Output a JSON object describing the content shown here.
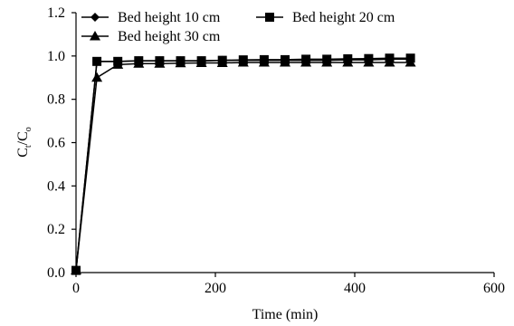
{
  "chart_data": {
    "type": "line",
    "title": "",
    "xlabel": "Time (min)",
    "ylabel_main": "C",
    "ylabel_main_sub": "t",
    "ylabel_sep": "/C",
    "ylabel_sep_sub": "o",
    "xlim": [
      0,
      600
    ],
    "ylim": [
      0.0,
      1.2
    ],
    "x_ticks": [
      0,
      200,
      400,
      600
    ],
    "x_tick_labels": [
      "0",
      "200",
      "400",
      "600"
    ],
    "y_ticks": [
      0.0,
      0.2,
      0.4,
      0.6,
      0.8,
      1.0,
      1.2
    ],
    "y_tick_labels": [
      "0.0",
      "0.2",
      "0.4",
      "0.6",
      "0.8",
      "1.0",
      "1.2"
    ],
    "grid": false,
    "legend_position": "top-left",
    "series": [
      {
        "name": "Bed height 10 cm",
        "marker": "diamond",
        "x": [
          0,
          30,
          60,
          90,
          120,
          150,
          180,
          210,
          240,
          270,
          300,
          330,
          360,
          390,
          420,
          450,
          480
        ],
        "y": [
          0.01,
          0.975,
          0.975,
          0.978,
          0.978,
          0.978,
          0.978,
          0.98,
          0.98,
          0.98,
          0.98,
          0.98,
          0.98,
          0.982,
          0.982,
          0.985,
          0.985
        ]
      },
      {
        "name": "Bed height 20 cm",
        "marker": "square",
        "x": [
          0,
          30,
          60,
          90,
          120,
          150,
          180,
          210,
          240,
          270,
          300,
          330,
          360,
          390,
          420,
          450,
          480
        ],
        "y": [
          0.01,
          0.975,
          0.975,
          0.978,
          0.978,
          0.978,
          0.978,
          0.98,
          0.982,
          0.983,
          0.983,
          0.985,
          0.985,
          0.987,
          0.988,
          0.99,
          0.99
        ]
      },
      {
        "name": "Bed height 30 cm",
        "marker": "triangle",
        "x": [
          0,
          30,
          60,
          90,
          120,
          150,
          180,
          210,
          240,
          270,
          300,
          330,
          360,
          390,
          420,
          450,
          480
        ],
        "y": [
          0.01,
          0.9,
          0.96,
          0.965,
          0.965,
          0.967,
          0.968,
          0.968,
          0.97,
          0.97,
          0.97,
          0.97,
          0.97,
          0.97,
          0.97,
          0.97,
          0.97
        ]
      }
    ]
  }
}
